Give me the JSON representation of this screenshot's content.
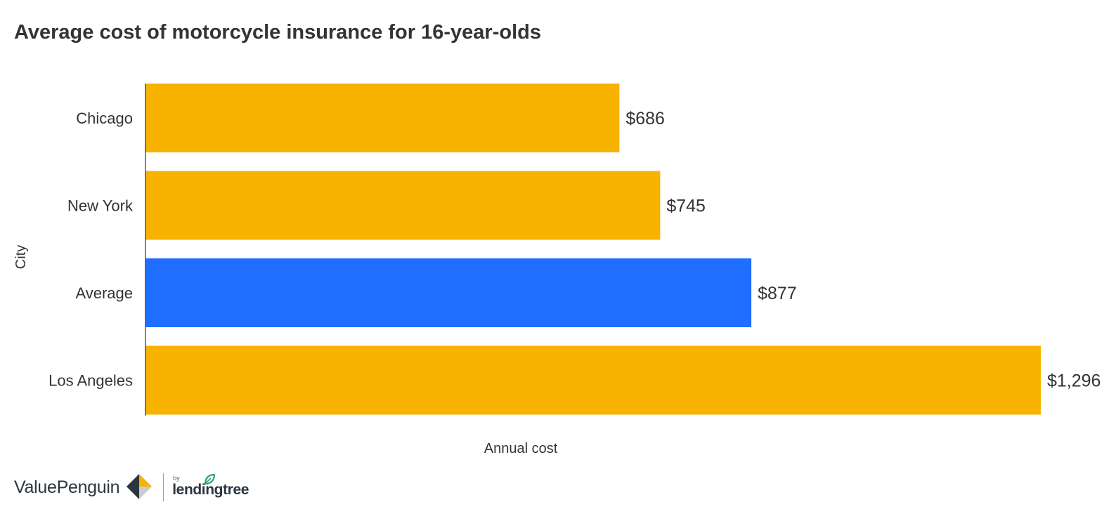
{
  "chart_data": {
    "type": "bar",
    "orientation": "horizontal",
    "title": "Average cost of motorcycle insurance for 16-year-olds",
    "xlabel": "Annual cost",
    "ylabel": "City",
    "categories": [
      "Chicago",
      "New York",
      "Average",
      "Los Angeles"
    ],
    "values": [
      686,
      745,
      877,
      1296
    ],
    "value_labels": [
      "$686",
      "$745",
      "$877",
      "$1,296"
    ],
    "highlight_category": "Average",
    "xlim": [
      0,
      1296
    ],
    "grid": false,
    "colors": {
      "default": "#F8B200",
      "highlight": "#1F6EFF",
      "axis": "#333333",
      "text": "#333333"
    }
  },
  "branding": {
    "valuepenguin": "ValuePenguin",
    "by": "by",
    "lendingtree": "lendingtree"
  }
}
